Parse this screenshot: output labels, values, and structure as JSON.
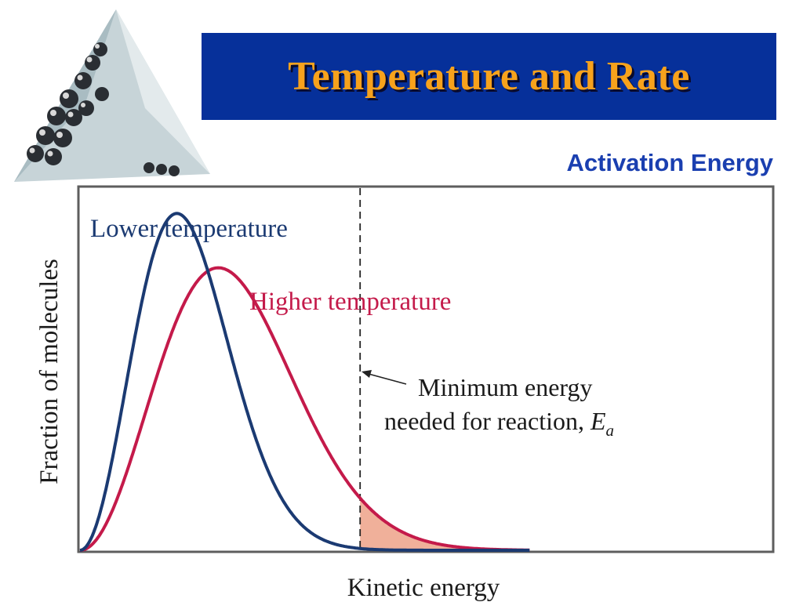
{
  "slide": {
    "title": "Temperature and Rate",
    "subtitle": "Activation Energy"
  },
  "colors": {
    "banner": "#06309a",
    "title": "#f7a21c",
    "subtitle": "#1a3fb0",
    "lower_curve": "#1b3a72",
    "higher_curve": "#c41a4a",
    "higher_fill": "#f0b09a",
    "lower_fill": "#8c96c4"
  },
  "chart_data": {
    "type": "line",
    "xlabel": "Kinetic energy",
    "ylabel": "Fraction of molecules",
    "axis_ticks": false,
    "grid": false,
    "series": [
      {
        "name": "Lower temperature",
        "peak_x": 0.14,
        "peak_y": 0.93
      },
      {
        "name": "Higher temperature",
        "peak_x": 0.2,
        "peak_y": 0.78
      }
    ],
    "threshold": {
      "x": 0.405,
      "label_line1": "Minimum energy",
      "label_line2": "needed for reaction, ",
      "symbol": "E",
      "subscript": "a"
    },
    "shaded_region": "area under each curve right of the threshold"
  }
}
